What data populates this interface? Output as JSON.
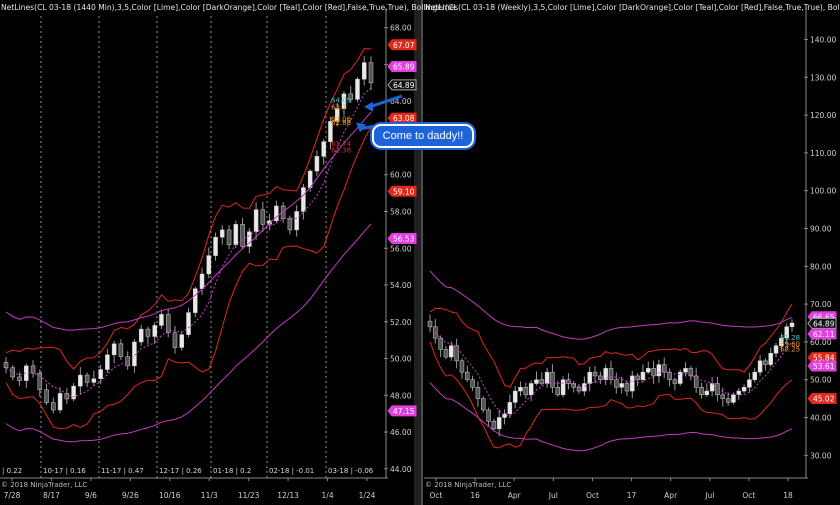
{
  "callout": {
    "text": "Come to daddy!!"
  },
  "chart_data": [
    {
      "type": "candlestick",
      "title": "NetLines(CL 03-18 (1440 Min),3,5,Color [Lime],Color [DarkOrange],Color [Teal],Color [Red],False,True,True), Bollinger(CL",
      "copyright": "© 2018 NinjaTrader, LLC",
      "ylim": [
        43.5,
        68.8
      ],
      "y_ticks": [
        "68.00",
        "66.00",
        "64.00",
        "62.00",
        "60.00",
        "58.00",
        "56.00",
        "54.00",
        "52.00",
        "50.00",
        "48.00",
        "46.00",
        "44.00"
      ],
      "x_ticks": [
        "7/28",
        "8/17",
        "9/6",
        "9/26",
        "10/16",
        "11/3",
        "11/23",
        "12/13",
        "1/4",
        "1/24"
      ],
      "period_labels": [
        "| 0.22",
        "10-17 | 0.16",
        "11-17 | 0.47",
        "12-17 | 0.26",
        "01-18 | 0.2",
        "02-18 | -0.01",
        "03-18 | -0.06"
      ],
      "price_badges": [
        {
          "value": "67.07",
          "color": "#e0281c"
        },
        {
          "value": "65.89",
          "color": "#e040e0"
        },
        {
          "value": "64.89",
          "color": "#111111"
        },
        {
          "value": "63.08",
          "color": "#e0281c"
        },
        {
          "value": "59.10",
          "color": "#e0281c"
        },
        {
          "value": "56.53",
          "color": "#e040e0"
        },
        {
          "value": "47.15",
          "color": "#e040e0"
        }
      ],
      "annotations": [
        {
          "text": "63.7",
          "color": "#ff9a1a"
        },
        {
          "text": "63.06",
          "color": "#ff9a1a"
        },
        {
          "text": "62.88",
          "color": "#ff9a1a"
        },
        {
          "text": "61.74",
          "color": "#e0281c"
        },
        {
          "text": "61.38",
          "color": "#e0281c"
        },
        {
          "text": "64.09",
          "color": "#33cccc"
        }
      ],
      "series": [
        {
          "name": "Price",
          "close": [
            49.5,
            49.0,
            48.8,
            49.6,
            49.2,
            48.3,
            47.6,
            47.2,
            48.1,
            47.8,
            48.5,
            49.1,
            48.7,
            48.9,
            49.4,
            50.2,
            50.8,
            50.1,
            49.6,
            50.9,
            51.6,
            51.2,
            51.8,
            52.4,
            51.4,
            50.6,
            51.3,
            52.5,
            53.8,
            54.6,
            55.6,
            56.6,
            57.0,
            56.2,
            57.3,
            56.1,
            56.9,
            58.1,
            57.3,
            57.5,
            58.3,
            57.6,
            57.0,
            58.0,
            59.3,
            60.2,
            61.0,
            61.8,
            62.9,
            63.6,
            64.4,
            64.1,
            65.2,
            66.1,
            65.0
          ]
        }
      ]
    },
    {
      "type": "candlestick",
      "title": "NetLines(CL 03-18 (Weekly),3,5,Color [Lime],Color [DarkOrange],Color [Teal],Color [Red],False,True,True), Bollinger(CL",
      "copyright": "© 2018 NinjaTrader, LLC",
      "ylim": [
        24,
        147
      ],
      "y_ticks": [
        "140.00",
        "130.00",
        "120.00",
        "110.00",
        "100.00",
        "90.00",
        "80.00",
        "70.00",
        "60.00",
        "50.00",
        "40.00",
        "30.00"
      ],
      "x_ticks": [
        "Oct",
        "16",
        "Apr",
        "Jul",
        "Oct",
        "17",
        "Apr",
        "Jul",
        "Oct",
        "18"
      ],
      "price_badges": [
        {
          "value": "66.65",
          "color": "#e040e0"
        },
        {
          "value": "64.89",
          "color": "#111111"
        },
        {
          "value": "62.11",
          "color": "#e040e0"
        },
        {
          "value": "55.84",
          "color": "#e0281c"
        },
        {
          "value": "53.61",
          "color": "#e040e0"
        },
        {
          "value": "45.02",
          "color": "#e0281c"
        }
      ],
      "annotations": [
        {
          "text": "61.28",
          "color": "#33cccc"
        },
        {
          "text": "59.60",
          "color": "#ff9a1a"
        },
        {
          "text": "58.25",
          "color": "#ff9a1a"
        }
      ],
      "series": [
        {
          "name": "Price",
          "close": [
            64,
            61,
            58,
            56,
            59,
            55,
            52,
            50,
            48,
            45,
            42,
            39,
            37,
            40,
            41,
            44,
            47,
            48,
            46,
            49,
            50,
            49,
            52,
            48,
            46,
            50,
            49,
            48,
            47,
            49,
            52,
            51,
            50,
            53,
            50,
            48,
            49,
            47,
            51,
            50,
            52,
            53,
            51,
            54,
            52,
            50,
            49,
            52,
            53,
            51,
            48,
            46,
            47,
            49,
            46,
            45,
            44,
            46,
            47,
            48,
            50,
            52,
            55,
            54,
            57,
            59,
            61,
            64,
            65
          ]
        }
      ]
    }
  ]
}
